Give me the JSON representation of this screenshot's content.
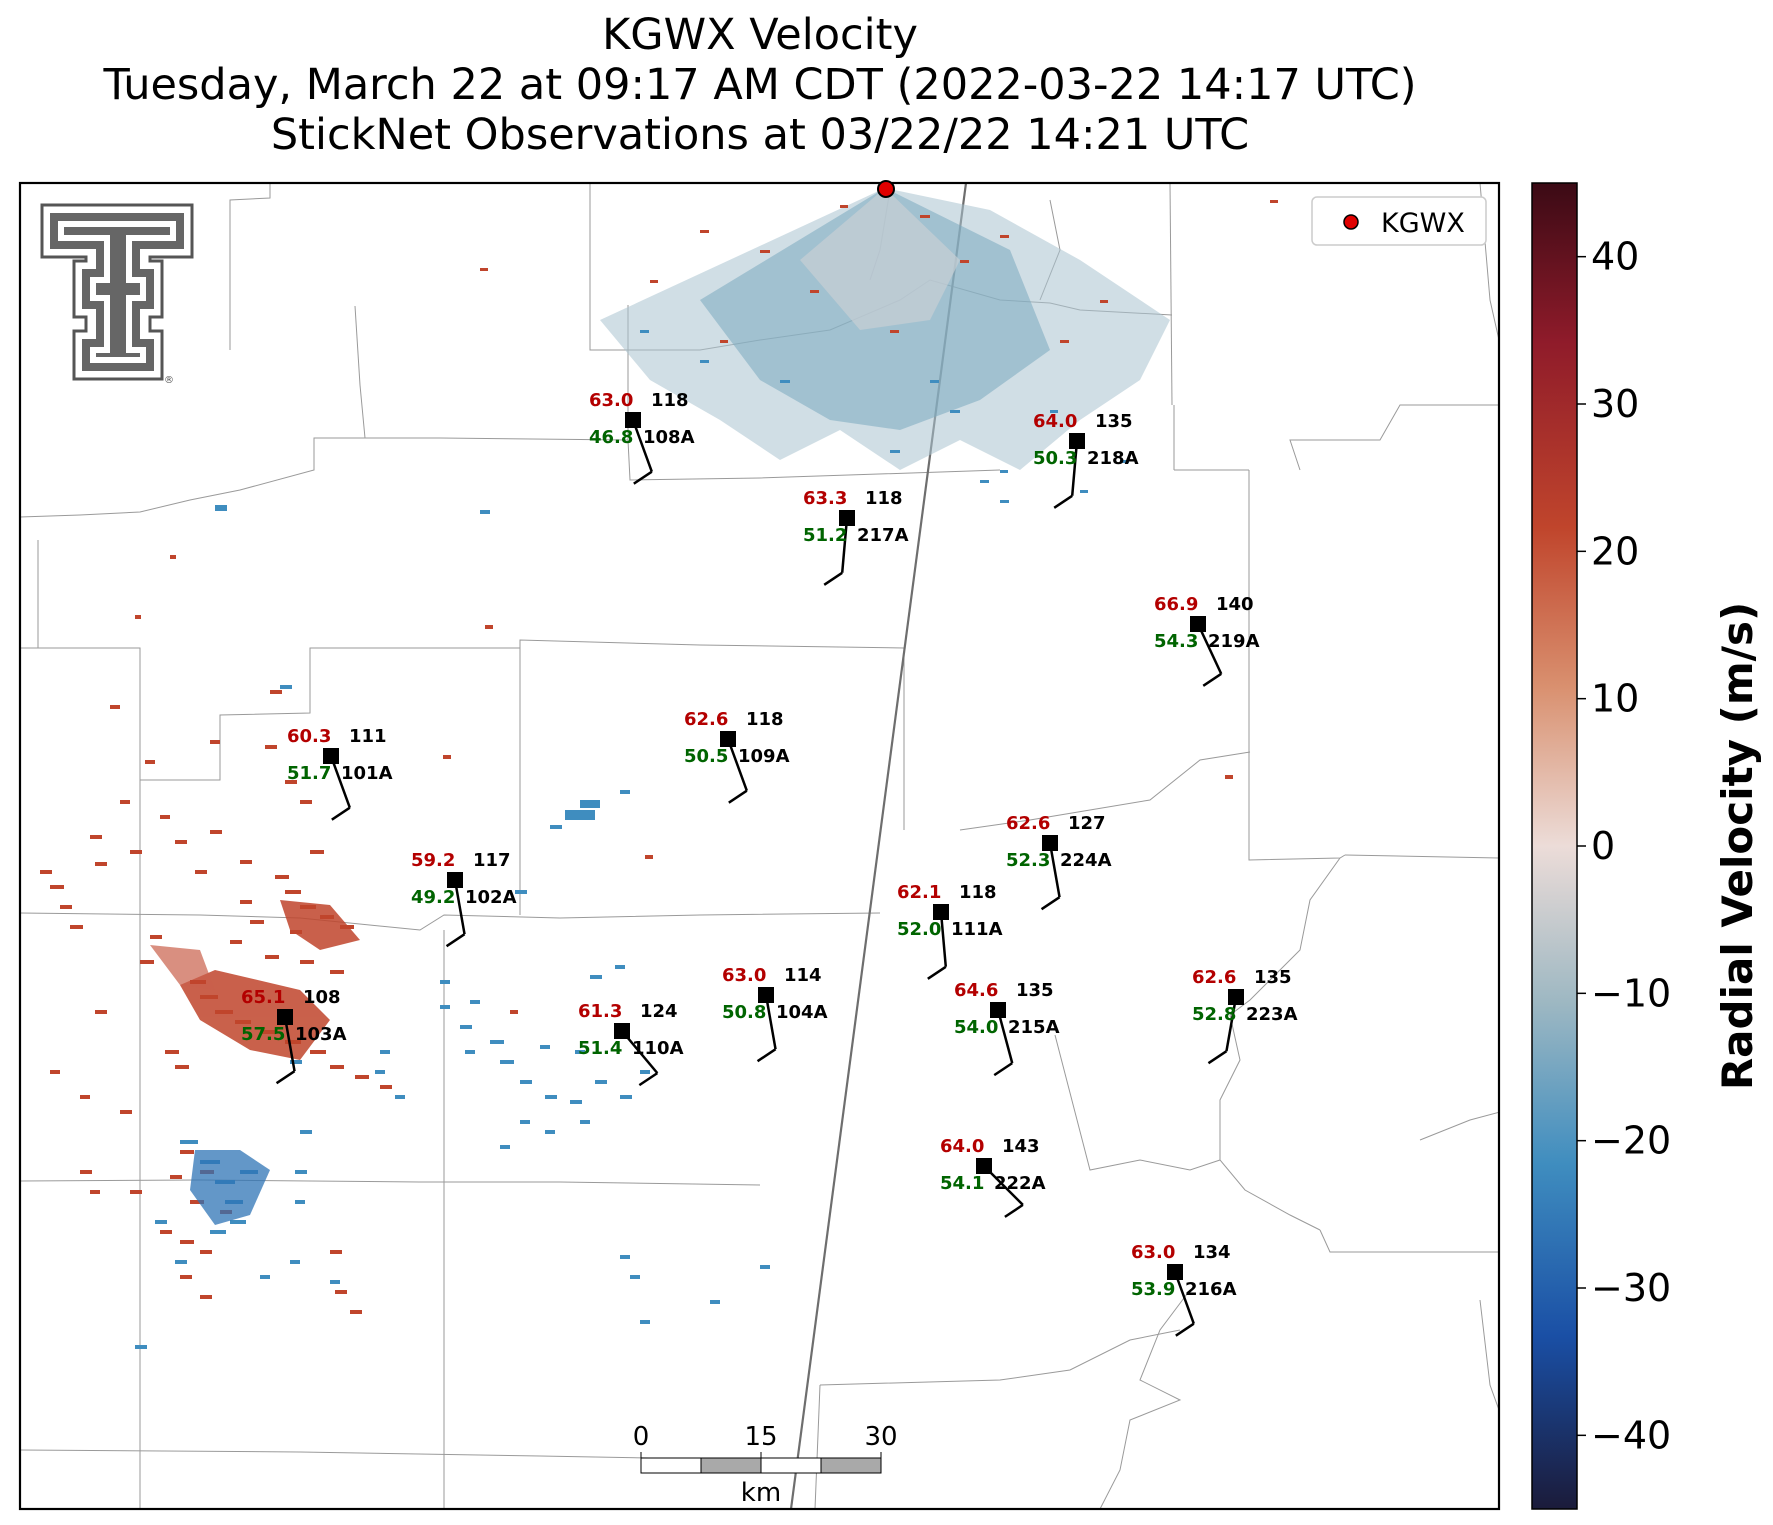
{
  "title": {
    "line1": "KGWX Velocity",
    "line2": "Tuesday, March 22 at 09:17 AM CDT (2022-03-22 14:17 UTC)",
    "line3": "StickNet Observations at 03/22/22 14:21 UTC"
  },
  "legend": {
    "label": "KGWX",
    "marker_color": "#e00000"
  },
  "colorbar": {
    "label": "Radial Velocity (m/s)",
    "range": [
      -45,
      45
    ],
    "ticks": [
      40,
      30,
      20,
      10,
      0,
      -10,
      -20,
      -30,
      -40
    ],
    "tick_labels": [
      "40",
      "30",
      "20",
      "10",
      "0",
      "−10",
      "−20",
      "−30",
      "−40"
    ],
    "colors": [
      "#3b0a15",
      "#8f1b2a",
      "#c0452c",
      "#d9906f",
      "#ecdcd8",
      "#9cb7c2",
      "#3f8dbf",
      "#1a4fa5",
      "#1b1b3a"
    ]
  },
  "scale_bar": {
    "labels": [
      "0",
      "15",
      "30"
    ],
    "unit": "km"
  },
  "logo": {
    "name": "Texas Tech double-T",
    "registered": "®"
  },
  "stations": [
    {
      "id": "108A",
      "temp": "63.0",
      "dew": "46.8",
      "other": "118"
    },
    {
      "id": "218A",
      "temp": "64.0",
      "dew": "50.3",
      "other": "135"
    },
    {
      "id": "217A",
      "temp": "63.3",
      "dew": "51.2",
      "other": "118"
    },
    {
      "id": "219A",
      "temp": "66.9",
      "dew": "54.3",
      "other": "140"
    },
    {
      "id": "101A",
      "temp": "60.3",
      "dew": "51.7",
      "other": "111"
    },
    {
      "id": "109A",
      "temp": "62.6",
      "dew": "50.5",
      "other": "118"
    },
    {
      "id": "224A",
      "temp": "62.6",
      "dew": "52.3",
      "other": "127"
    },
    {
      "id": "102A",
      "temp": "59.2",
      "dew": "49.2",
      "other": "117"
    },
    {
      "id": "111A",
      "temp": "62.1",
      "dew": "52.0",
      "other": "118"
    },
    {
      "id": "104A",
      "temp": "63.0",
      "dew": "50.8",
      "other": "114"
    },
    {
      "id": "215A",
      "temp": "64.6",
      "dew": "54.0",
      "other": "135"
    },
    {
      "id": "223A",
      "temp": "62.6",
      "dew": "52.8",
      "other": "135"
    },
    {
      "id": "103A",
      "temp": "65.1",
      "dew": "57.5",
      "other": "108"
    },
    {
      "id": "110A",
      "temp": "61.3",
      "dew": "51.4",
      "other": "124"
    },
    {
      "id": "222A",
      "temp": "64.0",
      "dew": "54.1",
      "other": "143"
    },
    {
      "id": "216A",
      "temp": "63.0",
      "dew": "53.9",
      "other": "134"
    }
  ]
}
